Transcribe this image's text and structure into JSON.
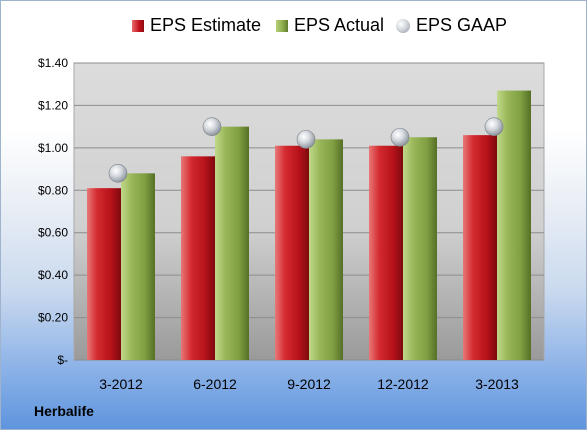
{
  "chart_data": {
    "type": "bar",
    "categories": [
      "3-2012",
      "6-2012",
      "9-2012",
      "12-2012",
      "3-2013"
    ],
    "series": [
      {
        "name": "EPS Estimate",
        "kind": "bar",
        "color": "#c1121b",
        "values": [
          0.81,
          0.96,
          1.01,
          1.01,
          1.06
        ]
      },
      {
        "name": "EPS Actual",
        "kind": "bar",
        "color": "#8aa94a",
        "values": [
          0.88,
          1.1,
          1.04,
          1.05,
          1.27
        ]
      },
      {
        "name": "EPS GAAP",
        "kind": "marker",
        "color": "#c8ccd2",
        "values": [
          0.88,
          1.1,
          1.04,
          1.05,
          1.1
        ]
      }
    ],
    "ylim": [
      0,
      1.4
    ],
    "yticks": [
      0,
      0.2,
      0.4,
      0.6,
      0.8,
      1.0,
      1.2,
      1.4
    ],
    "ytick_labels": [
      "$-",
      "$0.20",
      "$0.40",
      "$0.60",
      "$0.80",
      "$1.00",
      "$1.20",
      "$1.40"
    ],
    "grid": true,
    "legend_position": "top",
    "xlabel": "",
    "ylabel": ""
  },
  "footer": {
    "company": "Herbalife"
  }
}
